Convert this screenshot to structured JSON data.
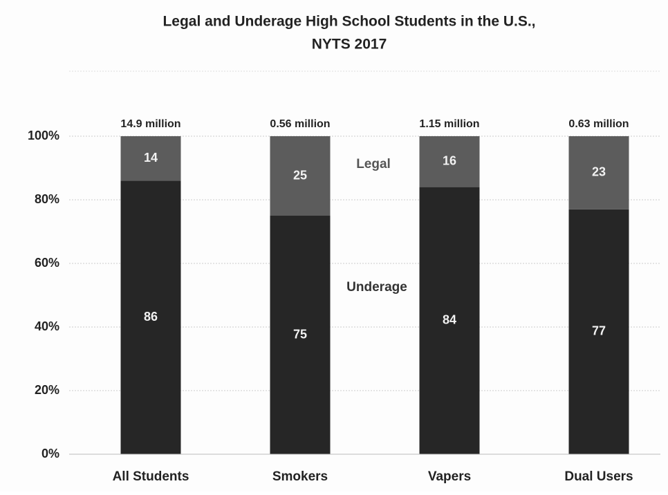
{
  "chart_data": {
    "type": "stacked_bar",
    "title": [
      "Legal and Underage High School Students in the U.S.,",
      "NYTS 2017"
    ],
    "categories": [
      "All Students",
      "Smokers",
      "Vapers",
      "Dual Users"
    ],
    "top_labels": [
      "14.9 million",
      "0.56 million",
      "1.15 million",
      "0.63 million"
    ],
    "series": [
      {
        "name": "Underage",
        "color": "#262626",
        "values": [
          86,
          75,
          84,
          77
        ]
      },
      {
        "name": "Legal",
        "color": "#5c5c5c",
        "values": [
          14,
          25,
          16,
          23
        ]
      }
    ],
    "ylim": [
      0,
      100
    ],
    "yticks": [
      {
        "value": 0,
        "label": "0%"
      },
      {
        "value": 20,
        "label": "20%"
      },
      {
        "value": 40,
        "label": "40%"
      },
      {
        "value": 60,
        "label": "60%"
      },
      {
        "value": 80,
        "label": "80%"
      },
      {
        "value": 100,
        "label": "100%"
      }
    ],
    "grid": true
  }
}
